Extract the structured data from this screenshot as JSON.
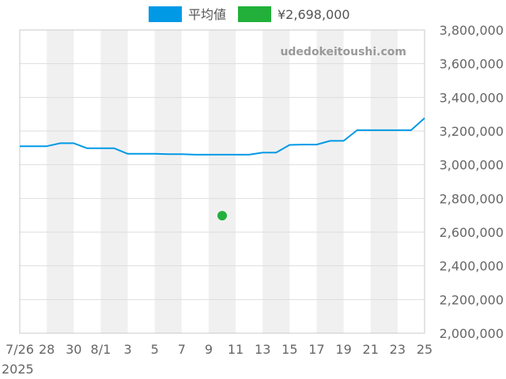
{
  "chart_data": {
    "type": "line",
    "watermark": "udedokeitoushi.com",
    "year_label": "2025",
    "legend": [
      {
        "label": "平均値",
        "color": "#0099e6"
      },
      {
        "label": "¥2,698,000",
        "color": "#22b03a"
      }
    ],
    "x_tick_labels": [
      "7/26",
      "28",
      "30",
      "8/1",
      "3",
      "5",
      "7",
      "9",
      "11",
      "13",
      "15",
      "17",
      "19",
      "21",
      "23",
      "25"
    ],
    "ylim": [
      2000000,
      3800000
    ],
    "y_tick_values": [
      2000000,
      2200000,
      2400000,
      2600000,
      2800000,
      3000000,
      3200000,
      3400000,
      3600000,
      3800000
    ],
    "y_tick_labels": [
      "2,000,000",
      "2,200,000",
      "2,400,000",
      "2,600,000",
      "2,800,000",
      "3,000,000",
      "3,200,000",
      "3,400,000",
      "3,600,000",
      "3,800,000"
    ],
    "series": [
      {
        "name": "平均値",
        "type": "line",
        "color": "#0099e6",
        "x": [
          "7/26",
          "7/27",
          "7/28",
          "7/29",
          "7/30",
          "7/31",
          "8/1",
          "8/2",
          "8/3",
          "8/4",
          "8/5",
          "8/6",
          "8/7",
          "8/8",
          "8/9",
          "8/10",
          "8/11",
          "8/12",
          "8/13",
          "8/14",
          "8/15",
          "8/16",
          "8/17",
          "8/18",
          "8/19",
          "8/20",
          "8/21",
          "8/22",
          "8/23",
          "8/24",
          "8/25"
        ],
        "values": [
          3110000,
          3110000,
          3110000,
          3128000,
          3128000,
          3098000,
          3098000,
          3098000,
          3065000,
          3065000,
          3065000,
          3063000,
          3063000,
          3060000,
          3060000,
          3060000,
          3060000,
          3060000,
          3072000,
          3072000,
          3118000,
          3120000,
          3120000,
          3142000,
          3142000,
          3205000,
          3205000,
          3205000,
          3205000,
          3205000,
          3277000
        ]
      },
      {
        "name": "¥2,698,000",
        "type": "scatter",
        "color": "#22b03a",
        "x": [
          "8/10"
        ],
        "values": [
          2698000
        ]
      }
    ]
  }
}
